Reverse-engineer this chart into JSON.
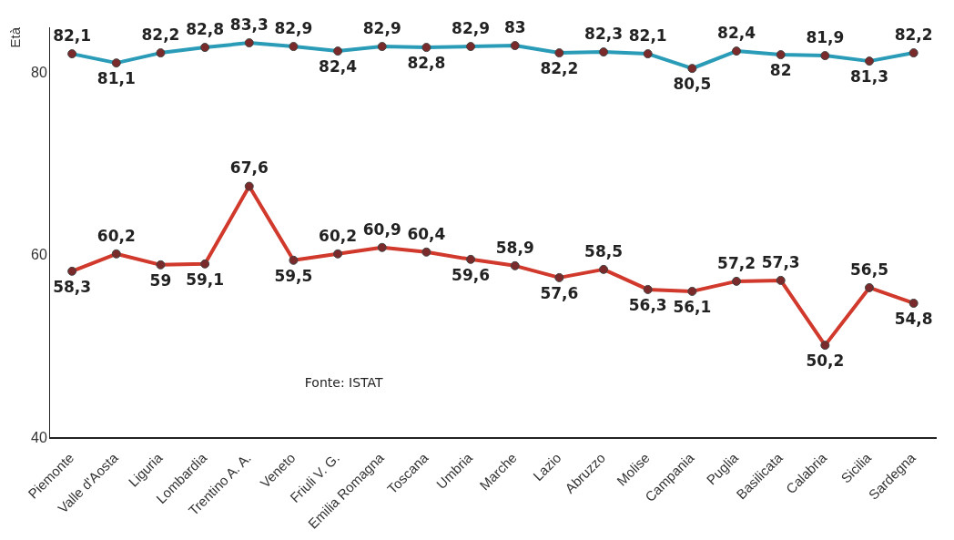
{
  "chart_data": {
    "type": "line",
    "ylabel": "Età",
    "annotations": [
      "Fonte: ISTAT"
    ],
    "categories": [
      "Piemonte",
      "Valle d'Aosta",
      "Liguria",
      "Lombardia",
      "Trentino A. A.",
      "Veneto",
      "Friuli V. G.",
      "Emilia Romagna",
      "Toscana",
      "Umbria",
      "Marche",
      "Lazio",
      "Abruzzo",
      "Molise",
      "Campania",
      "Puglia",
      "Basilicata",
      "Calabria",
      "Sicilia",
      "Sardegna"
    ],
    "series": [
      {
        "color": "#2a9cb8",
        "values": [
          82.1,
          81.1,
          82.2,
          82.8,
          83.3,
          82.9,
          82.4,
          82.9,
          82.8,
          82.9,
          83,
          82.2,
          82.3,
          82.1,
          80.5,
          82.4,
          82,
          81.9,
          81.3,
          82.2
        ],
        "value_labels": [
          "82,1",
          "81,1",
          "82,2",
          "82,8",
          "83,3",
          "82,9",
          "82,4",
          "82,9",
          "82,8",
          "82,9",
          "83",
          "82,2",
          "82,3",
          "82,1",
          "80,5",
          "82,4",
          "82",
          "81,9",
          "81,3",
          "82,2"
        ]
      },
      {
        "color": "#d0392b",
        "values": [
          58.3,
          60.2,
          59,
          59.1,
          67.6,
          59.5,
          60.2,
          60.9,
          60.4,
          59.6,
          58.9,
          57.6,
          58.5,
          56.3,
          56.1,
          57.2,
          57.3,
          50.2,
          56.5,
          54.8
        ],
        "value_labels": [
          "58,3",
          "60,2",
          "59",
          "59,1",
          "67,6",
          "59,5",
          "60,2",
          "60,9",
          "60,4",
          "59,6",
          "58,9",
          "57,6",
          "58,5",
          "56,3",
          "56,1",
          "57,2",
          "57,3",
          "50,2",
          "56,5",
          "54,8"
        ]
      }
    ],
    "ylim": [
      40,
      85
    ],
    "yticks": [
      40,
      60,
      80
    ],
    "grid": false,
    "legend": false,
    "marker": "circle",
    "line_style": "solid"
  }
}
